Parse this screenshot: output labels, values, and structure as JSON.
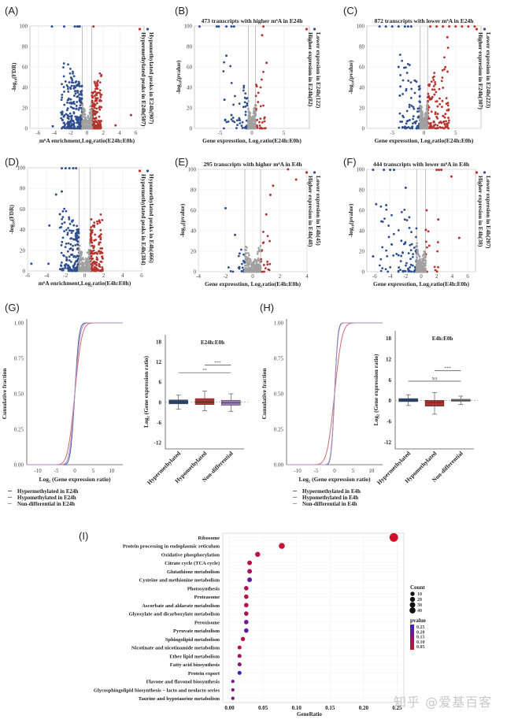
{
  "figure": {
    "watermark": "知乎 @爱基百客"
  },
  "chart_data": [
    {
      "id": "A",
      "panel_label": "(A)",
      "type": "scatter",
      "title": "",
      "xlabel": "m⁶A enrichment,Log₂ratio(E24h:E0h)",
      "ylabel": "-log₁₀(FDR)",
      "xlim": [
        -7,
        7
      ],
      "ylim": [
        0,
        100
      ],
      "xticks": [
        -6,
        -4,
        -2,
        0,
        2,
        4,
        6
      ],
      "yticks": [
        0,
        20,
        40,
        60,
        80,
        100
      ],
      "thresholds": [
        -0.58,
        0.58
      ],
      "legend": [
        {
          "label": "Hypomethylated peaks in E24h(907)",
          "color": "#2f4f8f"
        },
        {
          "label": "Hypermethylated peaks in E24h(507)",
          "color": "#b5342f"
        }
      ],
      "series": [
        {
          "name": "down",
          "color": "#2f4f8f",
          "count": 907,
          "xrange": [
            -3.2,
            -0.6
          ],
          "cap_x": [
            -4.3,
            -2.8,
            -1.5,
            -1.2,
            -1.0,
            -0.9
          ],
          "outliers": [
            [
              -4.2,
              2
            ],
            [
              -3.0,
              8
            ],
            [
              -2.8,
              12
            ]
          ]
        },
        {
          "name": "up",
          "color": "#b5342f",
          "count": 507,
          "xrange": [
            0.6,
            1.8
          ],
          "cap_x": [
            0.8
          ],
          "outliers": [
            [
              3.5,
              3
            ],
            [
              5.4,
              13
            ],
            [
              1.3,
              42
            ]
          ]
        },
        {
          "name": "ns",
          "color": "#a0a0a0",
          "xrange": [
            -0.6,
            0.6
          ]
        }
      ]
    },
    {
      "id": "B",
      "panel_label": "(B)",
      "type": "scatter",
      "title": "473 transcripts with higher m⁶A in E24h",
      "xlabel": "Gene expresstion, Log₂ratio(E24h:E0h)",
      "ylabel": "-log₁₀(pvalue)",
      "xlim": [
        -9,
        9
      ],
      "ylim": [
        0,
        100
      ],
      "xticks": [
        -5,
        0,
        5
      ],
      "yticks": [
        0,
        20,
        40,
        60,
        80,
        100
      ],
      "thresholds": [
        -0.58,
        0.58
      ],
      "legend": [
        {
          "label": "Lower expresion in E24h(122)",
          "color": "#2f4f8f"
        },
        {
          "label": "Higher expresion in E24h(82)",
          "color": "#b5342f"
        }
      ],
      "series": [
        {
          "name": "down",
          "color": "#2f4f8f",
          "count": 122,
          "xrange": [
            -4.5,
            -0.6
          ],
          "cap_x": [
            -8.2,
            -5.5,
            -5.2,
            -4,
            -3.2,
            -2.8
          ],
          "outliers": [
            [
              -4.3,
              28
            ],
            [
              -3.2,
              13
            ],
            [
              -4.0,
              71
            ]
          ]
        },
        {
          "name": "up",
          "color": "#b5342f",
          "count": 82,
          "xrange": [
            0.6,
            2.3
          ],
          "cap_x": [
            1.8
          ],
          "outliers": [
            [
              2.3,
              64
            ],
            [
              1.6,
              91
            ]
          ]
        },
        {
          "name": "ns",
          "color": "#a0a0a0",
          "xrange": [
            -0.6,
            0.6
          ]
        }
      ]
    },
    {
      "id": "C",
      "panel_label": "(C)",
      "type": "scatter",
      "title": "872 transcripts with lower m⁶A in E24h",
      "xlabel": "Gene expresstion, Log₂ratio(E24h:E0h)",
      "ylabel": "-log₁₀(pvalue)",
      "xlim": [
        -9,
        9
      ],
      "ylim": [
        0,
        100
      ],
      "xticks": [
        -5,
        0,
        5
      ],
      "yticks": [
        0,
        20,
        40,
        60,
        80,
        100
      ],
      "thresholds": [
        -0.58,
        0.58
      ],
      "legend": [
        {
          "label": "Lower expresion in E24h(223)",
          "color": "#2f4f8f"
        },
        {
          "label": "Higher expresion in E24h(307)",
          "color": "#b5342f"
        }
      ],
      "series": [
        {
          "name": "down",
          "color": "#2f4f8f",
          "count": 223,
          "xrange": [
            -4,
            -0.6
          ],
          "cap_x": [
            -7,
            -6,
            -5,
            -4,
            -3,
            -2.5,
            -2
          ],
          "outliers": [
            [
              -3.8,
              32
            ],
            [
              -4,
              60
            ]
          ]
        },
        {
          "name": "up",
          "color": "#b5342f",
          "count": 307,
          "xrange": [
            0.6,
            4
          ],
          "cap_x": [
            1,
            2,
            3,
            4,
            5,
            6,
            7,
            8
          ],
          "outliers": [
            [
              3.7,
              89
            ],
            [
              3.4,
              14
            ]
          ]
        },
        {
          "name": "ns",
          "color": "#a0a0a0",
          "xrange": [
            -0.6,
            0.6
          ]
        }
      ]
    },
    {
      "id": "D",
      "panel_label": "(D)",
      "type": "scatter",
      "title": "",
      "xlabel": "m⁶A enrichment,Log₂ratio(E4h:E0h)",
      "ylabel": "-log₁₀(FDR)",
      "xlim": [
        -6,
        6
      ],
      "ylim": [
        0,
        100
      ],
      "xticks": [
        -6,
        -4,
        -2,
        0,
        2,
        4,
        6
      ],
      "yticks": [
        0,
        20,
        40,
        60,
        80,
        100
      ],
      "thresholds": [
        -0.58,
        0.58
      ],
      "legend": [
        {
          "label": "Hypomethylated peaks in E4h(466)",
          "color": "#2f4f8f"
        },
        {
          "label": "Hypermethylated peaks in E4h(384)",
          "color": "#b5342f"
        }
      ],
      "series": [
        {
          "name": "down",
          "color": "#2f4f8f",
          "count": 466,
          "xrange": [
            -2.6,
            -0.6
          ],
          "cap_x": [
            -2.4,
            -2,
            -1.6,
            -1.2,
            -0.9
          ],
          "outliers": [
            [
              -5.6,
              7
            ],
            [
              -3.8,
              7
            ],
            [
              -3.7,
              44
            ],
            [
              -3.0,
              74
            ],
            [
              -2.6,
              55
            ],
            [
              -2.4,
              77
            ]
          ]
        },
        {
          "name": "up",
          "color": "#b5342f",
          "count": 384,
          "xrange": [
            0.6,
            1.9
          ],
          "cap_x": [],
          "outliers": [
            [
              0.7,
              50
            ],
            [
              1.9,
              12
            ]
          ]
        },
        {
          "name": "ns",
          "color": "#a0a0a0",
          "xrange": [
            -0.6,
            0.6
          ]
        }
      ]
    },
    {
      "id": "E",
      "panel_label": "(E)",
      "type": "scatter",
      "title": "295 transcripts with higher m⁶A in E4h",
      "xlabel": "Gene expresstion, Log₂ratio(E4h:E0h)",
      "ylabel": "-log₁₀(pvalue)",
      "xlim": [
        -4,
        4
      ],
      "ylim": [
        0,
        100
      ],
      "xticks": [
        -4,
        -2,
        0,
        2,
        4
      ],
      "yticks": [
        0,
        20,
        40,
        60,
        80,
        100
      ],
      "thresholds": [
        -0.58,
        0.58
      ],
      "legend": [
        {
          "label": "Lower expresion in E4h(45)",
          "color": "#2f4f8f"
        },
        {
          "label": "Higher expresion in E4h(48)",
          "color": "#b5342f"
        }
      ],
      "series": [
        {
          "name": "down",
          "color": "#2f4f8f",
          "count": 45,
          "xrange": [
            -1.9,
            -0.6
          ],
          "cap_x": [],
          "outliers": [
            [
              -2.0,
              62
            ],
            [
              -1.3,
              36
            ]
          ]
        },
        {
          "name": "up",
          "color": "#b5342f",
          "count": 48,
          "xrange": [
            0.6,
            1.5
          ],
          "cap_x": [],
          "outliers": [
            [
              2.6,
              100
            ],
            [
              3.2,
              90
            ],
            [
              1.5,
              84
            ],
            [
              1.3,
              75
            ],
            [
              1.0,
              56
            ]
          ]
        },
        {
          "name": "ns",
          "color": "#a0a0a0",
          "xrange": [
            -0.6,
            0.6
          ]
        }
      ]
    },
    {
      "id": "F",
      "panel_label": "(F)",
      "type": "scatter",
      "title": "444 transcripts with lower m⁶A in E4h",
      "xlabel": "Gene expresstion, Log₂ratio(E4h:E0h)",
      "ylabel": "-log₁₀(pvalue)",
      "xlim": [
        -7,
        7
      ],
      "ylim": [
        0,
        100
      ],
      "xticks": [
        -6,
        -4,
        -2,
        0,
        2,
        4,
        6
      ],
      "yticks": [
        0,
        20,
        40,
        60,
        80,
        100
      ],
      "thresholds": [
        -0.58,
        0.58
      ],
      "legend": [
        {
          "label": "Lower expresion in E4h(207)",
          "color": "#2f4f8f"
        },
        {
          "label": "Higher expresion in E4h(38)",
          "color": "#b5342f"
        }
      ],
      "series": [
        {
          "name": "down",
          "color": "#2f4f8f",
          "count": 207,
          "xrange": [
            -5.5,
            -0.6
          ],
          "cap_x": [
            -6.2,
            -4.8,
            -4,
            -3.5
          ],
          "outliers": [
            [
              -5.8,
              66
            ],
            [
              -4.5,
              65
            ],
            [
              -6.2,
              15
            ],
            [
              -2.0,
              82
            ]
          ]
        },
        {
          "name": "up",
          "color": "#b5342f",
          "count": 38,
          "xrange": [
            0.6,
            2.5
          ],
          "cap_x": [
            2,
            2.3,
            2.6
          ],
          "outliers": [
            [
              3.9,
              93
            ],
            [
              4.9,
              33
            ],
            [
              0.7,
              60
            ],
            [
              2.2,
              51
            ]
          ]
        },
        {
          "name": "ns",
          "color": "#a0a0a0",
          "xrange": [
            -0.6,
            0.6
          ]
        }
      ]
    },
    {
      "id": "G-cdf",
      "panel_label": "(G)",
      "type": "line",
      "title": "",
      "xlabel": "Log₂ (Gene expression ratio)",
      "ylabel": "Cumulative fraction",
      "xlim": [
        -13,
        13
      ],
      "ylim": [
        0,
        1
      ],
      "xticks": [
        -10,
        -5,
        0,
        5,
        10
      ],
      "yticks": [
        0.0,
        0.25,
        0.5,
        0.75,
        1.0
      ],
      "ytick_labels": [
        "0.00",
        "0.25",
        "0.50",
        "0.75",
        "1.00"
      ],
      "series": [
        {
          "name": "Hypermethylated in E24h",
          "color": "#4a5fa8",
          "spread": 0.9
        },
        {
          "name": "Hypomethylated in E24h",
          "color": "#d06a6a",
          "spread": 1.5
        },
        {
          "name": "Non-differential in E24h",
          "color": "#a98cc4",
          "spread": 1.1
        }
      ]
    },
    {
      "id": "G-box",
      "type": "bar",
      "title": "E24h:E0h",
      "xlabel": "",
      "ylabel": "Log₂ (Gene expression ratio)",
      "ylim": [
        -14,
        20
      ],
      "yticks": [
        -12,
        -6,
        0,
        6,
        12,
        18
      ],
      "categories": [
        "Hypermethylated",
        "Hypomethylated",
        "Non-differential"
      ],
      "series": [
        {
          "name": "Hypermethylated",
          "color": "#2c4a7c",
          "q1": -0.6,
          "median": 0,
          "q3": 0.6,
          "whisker_low": -2.2,
          "whisker_high": 2.0
        },
        {
          "name": "Hypomethylated",
          "color": "#a8352f",
          "q1": -0.8,
          "median": 0,
          "q3": 1.0,
          "whisker_low": -2.6,
          "whisker_high": 3.2
        },
        {
          "name": "Non-differential",
          "color": "#9b7bb8",
          "q1": -1.0,
          "median": -0.2,
          "q3": 0.5,
          "whisker_low": -2.8,
          "whisker_high": 2.4
        }
      ],
      "significance": [
        {
          "from": 1,
          "to": 2,
          "y": 11,
          "label": "***"
        },
        {
          "from": 0,
          "to": 2,
          "y": 8.7,
          "label": "**"
        }
      ]
    },
    {
      "id": "H-cdf",
      "panel_label": "(H)",
      "type": "line",
      "title": "",
      "xlabel": "Log₂ (Gene expression ratio)",
      "ylabel": "Cumulative fraction",
      "xlim": [
        -13,
        13
      ],
      "ylim": [
        0,
        1
      ],
      "xticks": [
        -10,
        -5,
        0,
        5,
        10
      ],
      "yticks": [
        0.0,
        0.25,
        0.5,
        0.75,
        1.0
      ],
      "ytick_labels": [
        "0.00",
        "0.25",
        "0.50",
        "0.75",
        "1.00"
      ],
      "series": [
        {
          "name": "Hypermethylated in E4h",
          "color": "#4a5fa8",
          "spread": 0.7
        },
        {
          "name": "Hypomethylated in E4h",
          "color": "#d06a6a",
          "spread": 1.6
        },
        {
          "name": "Non-differential in E4h",
          "color": "#a98cc4",
          "spread": 0.75
        }
      ]
    },
    {
      "id": "H-box",
      "type": "bar",
      "title": "E4h:E0h",
      "xlabel": "",
      "ylabel": "Log₂ (Gene expression ratio)",
      "ylim": [
        -14,
        20
      ],
      "yticks": [
        -12,
        -6,
        0,
        6,
        12,
        18
      ],
      "categories": [
        "Hypermethylated",
        "Hypomethylated",
        "Non-differential"
      ],
      "series": [
        {
          "name": "Hypermethylated",
          "color": "#2c4a7c",
          "q1": -0.4,
          "median": 0,
          "q3": 0.5,
          "whisker_low": -1.5,
          "whisker_high": 1.6
        },
        {
          "name": "Hypomethylated",
          "color": "#a8352f",
          "q1": -1.7,
          "median": -0.6,
          "q3": 0,
          "whisker_low": -4.0,
          "whisker_high": 2.2
        },
        {
          "name": "Non-differential",
          "color": "#808080",
          "q1": -0.3,
          "median": 0,
          "q3": 0.3,
          "whisker_low": -1.2,
          "whisker_high": 1.2
        }
      ],
      "significance": [
        {
          "from": 1,
          "to": 2,
          "y": 8.5,
          "label": "***"
        },
        {
          "from": 0,
          "to": 2,
          "y": 5.5,
          "label": "NS"
        }
      ]
    },
    {
      "id": "I",
      "panel_label": "(I)",
      "type": "scatter",
      "title": "",
      "xlabel": "GeneRatio",
      "ylabel": "",
      "xlim": [
        -0.01,
        0.26
      ],
      "xticks": [
        0.0,
        0.05,
        0.1,
        0.15,
        0.2,
        0.25
      ],
      "xtick_labels": [
        "0.00",
        "0.05",
        "0.10",
        "0.15",
        "0.20",
        "0.25"
      ],
      "categories": [
        "Ribosome",
        "Protein processing in endoplasmic reticulum",
        "Oxidative phosphorylation",
        "Citrate cycle (TCA cycle)",
        "Glutathione metabolism",
        "Cysteine and methionine metabolism",
        "Photosynthesis",
        "Proteasome",
        "Ascorbate and aldarate metabolism",
        "Glyoxylate and dicarboxylate metabolism",
        "Peroxisome",
        "Pyruvate metabolism",
        "Sphingolipid metabolism",
        "Nicotinate and nicotinamide metabolism",
        "Ether lipid metabolism",
        "Fatty acid biosynthesis",
        "Protein export",
        "Flavone and flavonol biosynthesis",
        "Glycosphingolipid biosynthesis − lacto and neolacto series",
        "Taurine and hypotaurine metabolism"
      ],
      "gene_ratio": [
        0.245,
        0.078,
        0.042,
        0.03,
        0.03,
        0.03,
        0.025,
        0.025,
        0.025,
        0.025,
        0.025,
        0.025,
        0.02,
        0.015,
        0.015,
        0.015,
        0.015,
        0.005,
        0.005,
        0.005
      ],
      "count": [
        49,
        16,
        9,
        6,
        6,
        6,
        5,
        5,
        5,
        5,
        5,
        5,
        4,
        3,
        3,
        3,
        3,
        1,
        1,
        1
      ],
      "pvalue": [
        0.01,
        0.02,
        0.05,
        0.06,
        0.08,
        0.2,
        0.06,
        0.05,
        0.06,
        0.08,
        0.17,
        0.2,
        0.07,
        0.06,
        0.1,
        0.14,
        0.25,
        0.15,
        0.15,
        0.15
      ],
      "legend_count": {
        "title": "Count",
        "values": [
          10,
          20,
          30,
          40
        ]
      },
      "legend_pvalue": {
        "title": "pvalue",
        "values": [
          "0.25",
          "0.20",
          "0.15",
          "0.10",
          "0.05"
        ],
        "low_color": "#d0102a",
        "high_color": "#4020c0"
      }
    }
  ]
}
